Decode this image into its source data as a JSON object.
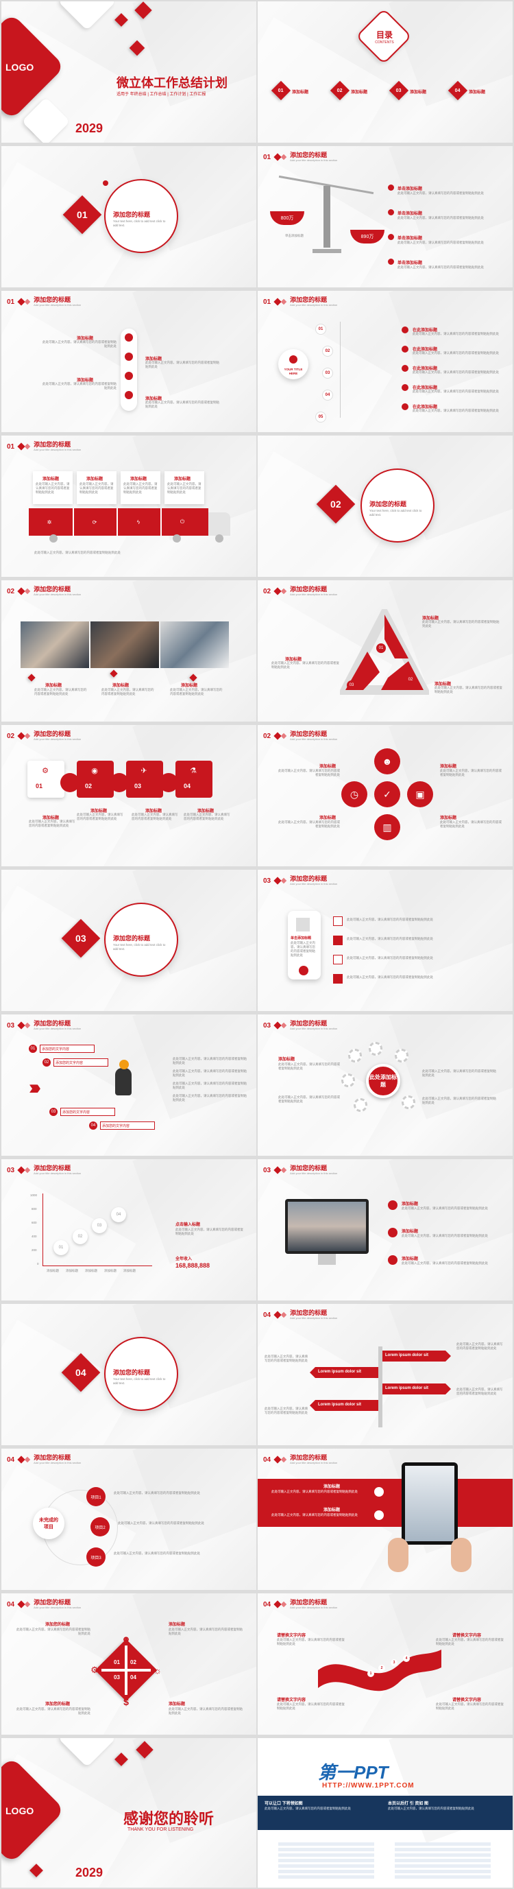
{
  "cover": {
    "logo": "LOGO",
    "title": "微立体工作总结计划",
    "subtitle": "适用于 年终总结 | 工作总结 | 工作计划 | 工作汇报",
    "year": "2029"
  },
  "toc": {
    "title": "目录",
    "en": "CONTENTS",
    "items": [
      {
        "num": "01",
        "label": "添加标题"
      },
      {
        "num": "02",
        "label": "添加标题"
      },
      {
        "num": "03",
        "label": "添加标题"
      },
      {
        "num": "04",
        "label": "添加标题"
      }
    ]
  },
  "common": {
    "slide_title": "添加您的标题",
    "slide_sub": "Add your title description in this section",
    "add_title": "添加标题",
    "add_title2": "添加您的标题",
    "lorem": "Lorem ipsum dolor sit",
    "body": "此处可输入正文内容，请认真填写您的内容或者复制粘贴到此处",
    "body_en": "Your text here, click to add text click to add text."
  },
  "section_nums": {
    "s1": "01",
    "s2": "02",
    "s3": "03",
    "s4": "04"
  },
  "scale": {
    "left": "800万",
    "right": "890万",
    "left_cap": "单击添加标题",
    "items": [
      "单击添加标题",
      "单击添加标题",
      "单击添加标题",
      "单击添加标题"
    ]
  },
  "steps": {
    "nums": [
      "01",
      "02",
      "03",
      "04",
      "05"
    ],
    "center": "YOUR TITLE HERE",
    "items": [
      "在此添加标题",
      "在此添加标题",
      "在此添加标题",
      "在此添加标题",
      "在此添加标题"
    ]
  },
  "arrows": {
    "items": [
      "添加您的文字内容",
      "添加您的文字内容",
      "添加您的文字内容",
      "添加您的文字内容"
    ]
  },
  "gear": {
    "center": "此处添加标题"
  },
  "bars": {
    "ylabels": [
      "1000",
      "800",
      "600",
      "400",
      "200",
      "0"
    ],
    "blocks": [
      "01",
      "02",
      "03",
      "04"
    ],
    "legend": [
      "添加标题",
      "添加标题",
      "添加标题",
      "添加标题",
      "添加标题"
    ],
    "right_title": "点击输入标题",
    "income": "全年收入",
    "amount": "168,888,888"
  },
  "circle_list": {
    "center": "未完成的项目",
    "tags": [
      "项目1",
      "项目2",
      "项目3"
    ]
  },
  "puzzle": {
    "nums": [
      "01",
      "02",
      "03",
      "04"
    ]
  },
  "wave": {
    "nums": [
      "1",
      "2",
      "3",
      "4"
    ],
    "labels": [
      "请替换文字内容",
      "请替换文字内容",
      "请替换文字内容",
      "请替换文字内容"
    ]
  },
  "thanks": {
    "logo": "LOGO",
    "title": "感谢您的聆听",
    "en": "THANK YOU FOR LISTENING",
    "year": "2029"
  },
  "brand": {
    "name": "第一PPT",
    "url": "HTTP://WWW.1PPT.COM",
    "left_head": "可以让口 下将领如图",
    "right_head": "本页以后打 引 资如 图"
  }
}
